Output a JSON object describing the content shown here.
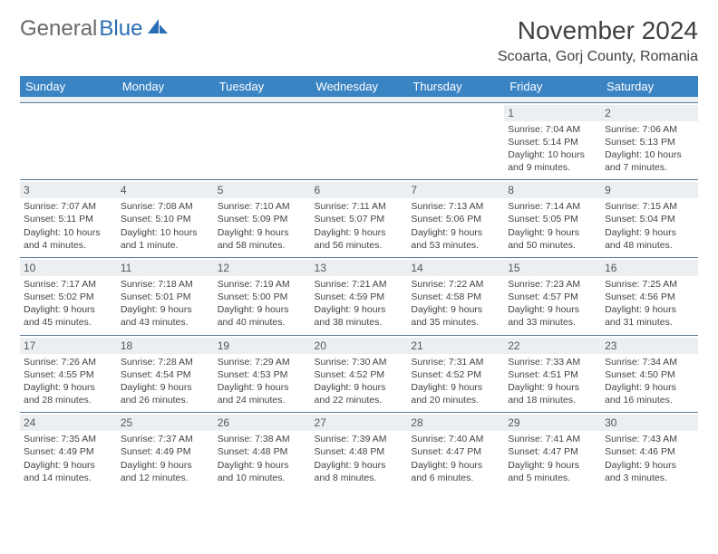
{
  "brand": {
    "part1": "General",
    "part2": "Blue"
  },
  "title": "November 2024",
  "location": "Scoarta, Gorj County, Romania",
  "header_bg": "#3b84c4",
  "daynum_bg": "#eceff1",
  "border_color": "#5a7a99",
  "days": [
    "Sunday",
    "Monday",
    "Tuesday",
    "Wednesday",
    "Thursday",
    "Friday",
    "Saturday"
  ],
  "weeks": [
    [
      {
        "n": "",
        "sr": "",
        "ss": "",
        "dl": ""
      },
      {
        "n": "",
        "sr": "",
        "ss": "",
        "dl": ""
      },
      {
        "n": "",
        "sr": "",
        "ss": "",
        "dl": ""
      },
      {
        "n": "",
        "sr": "",
        "ss": "",
        "dl": ""
      },
      {
        "n": "",
        "sr": "",
        "ss": "",
        "dl": ""
      },
      {
        "n": "1",
        "sr": "Sunrise: 7:04 AM",
        "ss": "Sunset: 5:14 PM",
        "dl": "Daylight: 10 hours and 9 minutes."
      },
      {
        "n": "2",
        "sr": "Sunrise: 7:06 AM",
        "ss": "Sunset: 5:13 PM",
        "dl": "Daylight: 10 hours and 7 minutes."
      }
    ],
    [
      {
        "n": "3",
        "sr": "Sunrise: 7:07 AM",
        "ss": "Sunset: 5:11 PM",
        "dl": "Daylight: 10 hours and 4 minutes."
      },
      {
        "n": "4",
        "sr": "Sunrise: 7:08 AM",
        "ss": "Sunset: 5:10 PM",
        "dl": "Daylight: 10 hours and 1 minute."
      },
      {
        "n": "5",
        "sr": "Sunrise: 7:10 AM",
        "ss": "Sunset: 5:09 PM",
        "dl": "Daylight: 9 hours and 58 minutes."
      },
      {
        "n": "6",
        "sr": "Sunrise: 7:11 AM",
        "ss": "Sunset: 5:07 PM",
        "dl": "Daylight: 9 hours and 56 minutes."
      },
      {
        "n": "7",
        "sr": "Sunrise: 7:13 AM",
        "ss": "Sunset: 5:06 PM",
        "dl": "Daylight: 9 hours and 53 minutes."
      },
      {
        "n": "8",
        "sr": "Sunrise: 7:14 AM",
        "ss": "Sunset: 5:05 PM",
        "dl": "Daylight: 9 hours and 50 minutes."
      },
      {
        "n": "9",
        "sr": "Sunrise: 7:15 AM",
        "ss": "Sunset: 5:04 PM",
        "dl": "Daylight: 9 hours and 48 minutes."
      }
    ],
    [
      {
        "n": "10",
        "sr": "Sunrise: 7:17 AM",
        "ss": "Sunset: 5:02 PM",
        "dl": "Daylight: 9 hours and 45 minutes."
      },
      {
        "n": "11",
        "sr": "Sunrise: 7:18 AM",
        "ss": "Sunset: 5:01 PM",
        "dl": "Daylight: 9 hours and 43 minutes."
      },
      {
        "n": "12",
        "sr": "Sunrise: 7:19 AM",
        "ss": "Sunset: 5:00 PM",
        "dl": "Daylight: 9 hours and 40 minutes."
      },
      {
        "n": "13",
        "sr": "Sunrise: 7:21 AM",
        "ss": "Sunset: 4:59 PM",
        "dl": "Daylight: 9 hours and 38 minutes."
      },
      {
        "n": "14",
        "sr": "Sunrise: 7:22 AM",
        "ss": "Sunset: 4:58 PM",
        "dl": "Daylight: 9 hours and 35 minutes."
      },
      {
        "n": "15",
        "sr": "Sunrise: 7:23 AM",
        "ss": "Sunset: 4:57 PM",
        "dl": "Daylight: 9 hours and 33 minutes."
      },
      {
        "n": "16",
        "sr": "Sunrise: 7:25 AM",
        "ss": "Sunset: 4:56 PM",
        "dl": "Daylight: 9 hours and 31 minutes."
      }
    ],
    [
      {
        "n": "17",
        "sr": "Sunrise: 7:26 AM",
        "ss": "Sunset: 4:55 PM",
        "dl": "Daylight: 9 hours and 28 minutes."
      },
      {
        "n": "18",
        "sr": "Sunrise: 7:28 AM",
        "ss": "Sunset: 4:54 PM",
        "dl": "Daylight: 9 hours and 26 minutes."
      },
      {
        "n": "19",
        "sr": "Sunrise: 7:29 AM",
        "ss": "Sunset: 4:53 PM",
        "dl": "Daylight: 9 hours and 24 minutes."
      },
      {
        "n": "20",
        "sr": "Sunrise: 7:30 AM",
        "ss": "Sunset: 4:52 PM",
        "dl": "Daylight: 9 hours and 22 minutes."
      },
      {
        "n": "21",
        "sr": "Sunrise: 7:31 AM",
        "ss": "Sunset: 4:52 PM",
        "dl": "Daylight: 9 hours and 20 minutes."
      },
      {
        "n": "22",
        "sr": "Sunrise: 7:33 AM",
        "ss": "Sunset: 4:51 PM",
        "dl": "Daylight: 9 hours and 18 minutes."
      },
      {
        "n": "23",
        "sr": "Sunrise: 7:34 AM",
        "ss": "Sunset: 4:50 PM",
        "dl": "Daylight: 9 hours and 16 minutes."
      }
    ],
    [
      {
        "n": "24",
        "sr": "Sunrise: 7:35 AM",
        "ss": "Sunset: 4:49 PM",
        "dl": "Daylight: 9 hours and 14 minutes."
      },
      {
        "n": "25",
        "sr": "Sunrise: 7:37 AM",
        "ss": "Sunset: 4:49 PM",
        "dl": "Daylight: 9 hours and 12 minutes."
      },
      {
        "n": "26",
        "sr": "Sunrise: 7:38 AM",
        "ss": "Sunset: 4:48 PM",
        "dl": "Daylight: 9 hours and 10 minutes."
      },
      {
        "n": "27",
        "sr": "Sunrise: 7:39 AM",
        "ss": "Sunset: 4:48 PM",
        "dl": "Daylight: 9 hours and 8 minutes."
      },
      {
        "n": "28",
        "sr": "Sunrise: 7:40 AM",
        "ss": "Sunset: 4:47 PM",
        "dl": "Daylight: 9 hours and 6 minutes."
      },
      {
        "n": "29",
        "sr": "Sunrise: 7:41 AM",
        "ss": "Sunset: 4:47 PM",
        "dl": "Daylight: 9 hours and 5 minutes."
      },
      {
        "n": "30",
        "sr": "Sunrise: 7:43 AM",
        "ss": "Sunset: 4:46 PM",
        "dl": "Daylight: 9 hours and 3 minutes."
      }
    ]
  ]
}
